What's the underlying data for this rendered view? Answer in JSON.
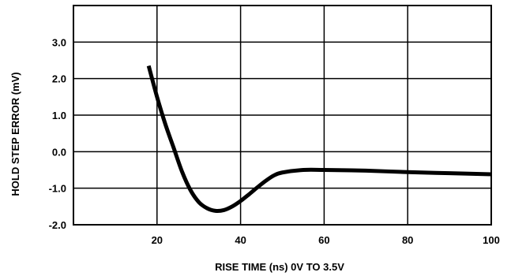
{
  "chart_data": {
    "type": "line",
    "title": "",
    "xlabel": "RISE TIME (ns) 0V TO 3.5V",
    "ylabel": "HOLD STEP ERROR (mV)",
    "xlim": [
      0,
      100
    ],
    "ylim": [
      -2.0,
      4.0
    ],
    "x_ticks": [
      20,
      40,
      60,
      80,
      100
    ],
    "x_tick_labels": [
      "20",
      "40",
      "60",
      "80",
      "100"
    ],
    "y_ticks": [
      -2.0,
      -1.0,
      0.0,
      1.0,
      2.0,
      3.0
    ],
    "y_tick_labels": [
      "-2.0",
      "-1.0",
      "0.0",
      "1.0",
      "2.0",
      "3.0"
    ],
    "grid": true,
    "series": [
      {
        "x": [
          18,
          20,
          22,
          24,
          26,
          28,
          30,
          32,
          34,
          36,
          38,
          40,
          42,
          44,
          46,
          48,
          50,
          55,
          60,
          70,
          80,
          90,
          100
        ],
        "y": [
          2.35,
          1.5,
          0.75,
          0.1,
          -0.55,
          -1.05,
          -1.38,
          -1.55,
          -1.62,
          -1.6,
          -1.5,
          -1.35,
          -1.17,
          -0.98,
          -0.8,
          -0.65,
          -0.57,
          -0.5,
          -0.5,
          -0.52,
          -0.56,
          -0.59,
          -0.62
        ],
        "color": "#000000"
      }
    ]
  }
}
